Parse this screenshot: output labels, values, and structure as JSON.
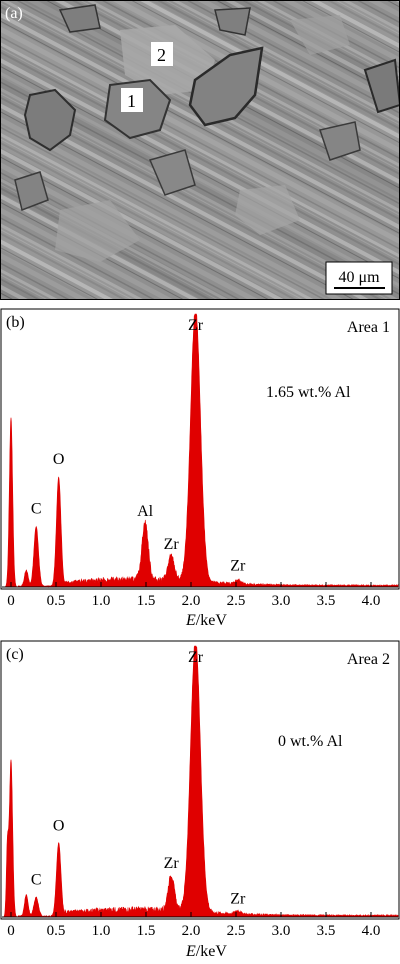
{
  "sem_panel": {
    "panel_label": "(a)",
    "area_labels": [
      {
        "text": "1"
      },
      {
        "text": "2"
      }
    ],
    "scale_bar": "40 μm"
  },
  "chart_data": [
    {
      "type": "area",
      "panel_label": "(b)",
      "area_label": "Area 1",
      "composition": "1.65 wt.% Al",
      "xlabel_italic": "E",
      "xlabel_rest": "/keV",
      "xlim": [
        -0.1,
        4.3
      ],
      "ylim": [
        0,
        100
      ],
      "x_ticks": [
        "0",
        "0.5",
        "1.0",
        "1.5",
        "2.0",
        "2.5",
        "3.0",
        "3.5",
        "4.0"
      ],
      "x_tick_values": [
        0,
        0.5,
        1.0,
        1.5,
        2.0,
        2.5,
        3.0,
        3.5,
        4.0
      ],
      "color": "#e00000",
      "peaks": [
        {
          "x": 0.0,
          "y": 62,
          "w": 0.018
        },
        {
          "x": 0.17,
          "y": 6,
          "w": 0.02
        },
        {
          "x": 0.28,
          "y": 22,
          "w": 0.025
        },
        {
          "x": 0.53,
          "y": 40,
          "w": 0.025
        },
        {
          "x": 1.49,
          "y": 21,
          "w": 0.035
        },
        {
          "x": 1.78,
          "y": 9,
          "w": 0.035
        },
        {
          "x": 2.05,
          "y": 100,
          "w": 0.055
        },
        {
          "x": 2.52,
          "y": 1.5,
          "w": 0.03
        }
      ],
      "annotations": [
        {
          "text": "C",
          "x": 0.28,
          "y": 27
        },
        {
          "text": "O",
          "x": 0.53,
          "y": 45
        },
        {
          "text": "Al",
          "x": 1.49,
          "y": 26
        },
        {
          "text": "Zr",
          "x": 1.78,
          "y": 14
        },
        {
          "text": "Zr",
          "x": 2.05,
          "y": 103
        },
        {
          "text": "Zr",
          "x": 2.52,
          "y": 6
        }
      ]
    },
    {
      "type": "area",
      "panel_label": "(c)",
      "area_label": "Area 2",
      "composition": "0 wt.% Al",
      "xlabel_italic": "E",
      "xlabel_rest": "/keV",
      "xlim": [
        -0.1,
        4.3
      ],
      "ylim": [
        0,
        100
      ],
      "x_ticks": [
        "0",
        "0.5",
        "1.0",
        "1.5",
        "2.0",
        "2.5",
        "3.0",
        "3.5",
        "4.0"
      ],
      "x_tick_values": [
        0,
        0.5,
        1.0,
        1.5,
        2.0,
        2.5,
        3.0,
        3.5,
        4.0
      ],
      "color": "#e00000",
      "peaks": [
        {
          "x": -0.04,
          "y": 25,
          "w": 0.012
        },
        {
          "x": 0.0,
          "y": 58,
          "w": 0.018
        },
        {
          "x": 0.17,
          "y": 8,
          "w": 0.02
        },
        {
          "x": 0.28,
          "y": 7,
          "w": 0.025
        },
        {
          "x": 0.53,
          "y": 27,
          "w": 0.025
        },
        {
          "x": 1.78,
          "y": 13,
          "w": 0.035
        },
        {
          "x": 2.05,
          "y": 100,
          "w": 0.055
        },
        {
          "x": 2.52,
          "y": 1.2,
          "w": 0.03
        }
      ],
      "annotations": [
        {
          "text": "C",
          "x": 0.28,
          "y": 12
        },
        {
          "text": "O",
          "x": 0.53,
          "y": 32
        },
        {
          "text": "Zr",
          "x": 1.78,
          "y": 18
        },
        {
          "text": "Zr",
          "x": 2.05,
          "y": 103
        },
        {
          "text": "Zr",
          "x": 2.52,
          "y": 5
        }
      ]
    }
  ]
}
